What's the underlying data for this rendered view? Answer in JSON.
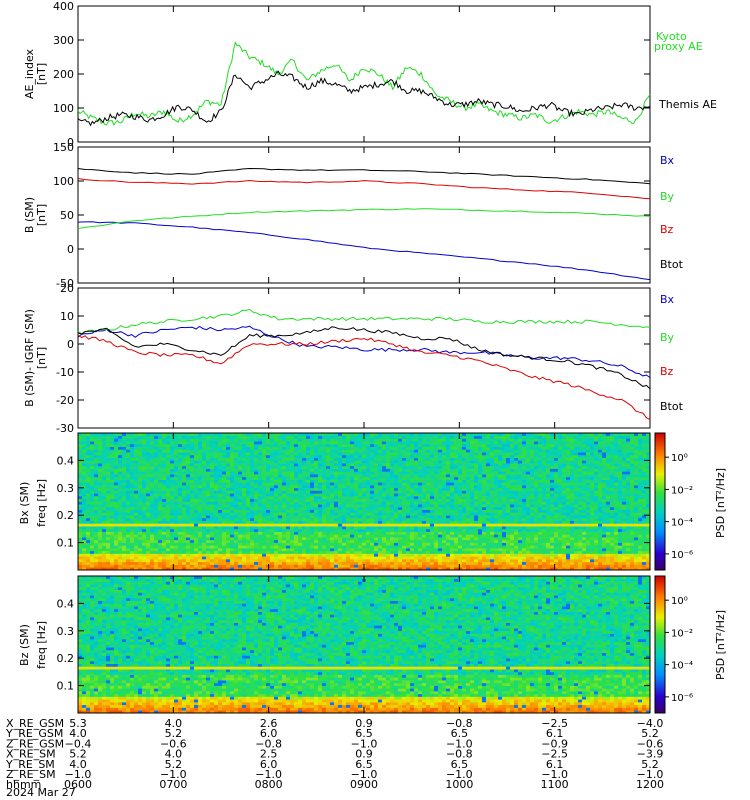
{
  "chart_data": [
    {
      "type": "line",
      "ylabel": "AE_index",
      "yunit": "[nT]",
      "ylim": [
        0,
        400
      ],
      "yticks": [
        0,
        100,
        200,
        300,
        400
      ],
      "series": [
        {
          "name": "Kyoto proxy AE",
          "color": "#22dd22",
          "x": [
            600,
            615,
            630,
            645,
            660,
            675,
            690,
            705,
            720,
            735,
            750,
            765,
            780,
            795,
            810,
            825,
            840,
            855,
            870,
            885,
            900,
            915,
            930,
            945,
            960,
            975,
            990,
            1005,
            1020,
            1035,
            1050,
            1065,
            1080,
            1095,
            1110,
            1125,
            1140,
            1155,
            1170,
            1185,
            1200
          ],
          "values": [
            90,
            70,
            55,
            60,
            85,
            75,
            90,
            60,
            80,
            120,
            110,
            290,
            250,
            230,
            200,
            240,
            180,
            210,
            230,
            180,
            220,
            200,
            160,
            220,
            200,
            140,
            120,
            100,
            110,
            90,
            80,
            70,
            80,
            60,
            75,
            90,
            80,
            90,
            70,
            60,
            140
          ]
        },
        {
          "name": "Themis AE",
          "color": "#000000",
          "x": [
            600,
            615,
            630,
            645,
            660,
            675,
            690,
            705,
            720,
            735,
            750,
            765,
            780,
            795,
            810,
            825,
            840,
            855,
            870,
            885,
            900,
            915,
            930,
            945,
            960,
            975,
            990,
            1005,
            1020,
            1035,
            1050,
            1065,
            1080,
            1095,
            1110,
            1125,
            1140,
            1155,
            1170,
            1185,
            1200
          ],
          "values": [
            60,
            55,
            70,
            80,
            75,
            65,
            80,
            105,
            95,
            60,
            90,
            200,
            160,
            180,
            200,
            190,
            160,
            180,
            170,
            150,
            160,
            170,
            180,
            150,
            150,
            130,
            110,
            110,
            120,
            110,
            105,
            90,
            100,
            110,
            90,
            80,
            95,
            100,
            110,
            100,
            105
          ]
        }
      ]
    },
    {
      "type": "line",
      "ylabel": "B (SM)",
      "yunit": "[nT]",
      "ylim": [
        -50,
        150
      ],
      "yticks": [
        -50,
        0,
        50,
        100,
        150
      ],
      "series": [
        {
          "name": "Bx",
          "color": "#0000cc",
          "x": [
            600,
            660,
            720,
            780,
            840,
            900,
            960,
            1020,
            1080,
            1140,
            1200
          ],
          "values": [
            40,
            38,
            32,
            24,
            14,
            2,
            -6,
            -14,
            -22,
            -32,
            -45
          ]
        },
        {
          "name": "By",
          "color": "#22dd22",
          "x": [
            600,
            660,
            720,
            780,
            840,
            900,
            960,
            1020,
            1080,
            1140,
            1200
          ],
          "values": [
            30,
            42,
            48,
            54,
            56,
            58,
            59,
            57,
            55,
            52,
            48
          ]
        },
        {
          "name": "Bz",
          "color": "#dd0000",
          "x": [
            600,
            660,
            720,
            780,
            840,
            900,
            960,
            1020,
            1080,
            1140,
            1200
          ],
          "values": [
            103,
            98,
            96,
            100,
            98,
            100,
            96,
            90,
            86,
            82,
            74
          ]
        },
        {
          "name": "Btot",
          "color": "#000000",
          "x": [
            600,
            660,
            720,
            780,
            840,
            900,
            960,
            1020,
            1080,
            1140,
            1200
          ],
          "values": [
            118,
            112,
            110,
            118,
            116,
            116,
            114,
            110,
            106,
            102,
            96
          ]
        }
      ]
    },
    {
      "type": "line",
      "ylabel": "B (SM)- IGRF (SM)",
      "yunit": "[nT]",
      "ylim": [
        -30,
        20
      ],
      "yticks": [
        -30,
        -20,
        -10,
        0,
        10,
        20
      ],
      "series": [
        {
          "name": "Bx",
          "color": "#0000cc",
          "x": [
            600,
            630,
            660,
            690,
            720,
            750,
            780,
            810,
            840,
            870,
            900,
            930,
            960,
            990,
            1020,
            1050,
            1080,
            1110,
            1140,
            1170,
            1200
          ],
          "values": [
            3,
            5,
            3,
            5,
            6,
            5,
            6,
            2,
            -1,
            -1,
            -2,
            -2,
            -2,
            -3,
            -3,
            -4,
            -5,
            -5,
            -6,
            -8,
            -12
          ]
        },
        {
          "name": "By",
          "color": "#22dd22",
          "x": [
            600,
            630,
            660,
            690,
            720,
            750,
            780,
            810,
            840,
            870,
            900,
            930,
            960,
            990,
            1020,
            1050,
            1080,
            1110,
            1140,
            1170,
            1200
          ],
          "values": [
            4,
            5,
            7,
            8,
            9,
            10,
            12,
            9,
            9,
            9,
            9,
            9,
            9,
            9,
            8,
            8,
            8,
            8,
            8,
            7,
            6
          ]
        },
        {
          "name": "Bz",
          "color": "#dd0000",
          "x": [
            600,
            630,
            660,
            690,
            720,
            750,
            780,
            810,
            840,
            870,
            900,
            930,
            960,
            990,
            1020,
            1050,
            1080,
            1110,
            1140,
            1170,
            1200
          ],
          "values": [
            3,
            1,
            -3,
            -4,
            -4,
            -7,
            0,
            0,
            0,
            1,
            2,
            0,
            -3,
            -4,
            -6,
            -9,
            -12,
            -14,
            -17,
            -20,
            -27
          ]
        },
        {
          "name": "Btot",
          "color": "#000000",
          "x": [
            600,
            630,
            660,
            690,
            720,
            750,
            780,
            810,
            840,
            870,
            900,
            930,
            960,
            990,
            1020,
            1050,
            1080,
            1110,
            1140,
            1170,
            1200
          ],
          "values": [
            4,
            5,
            -1,
            0,
            -2,
            -4,
            3,
            3,
            4,
            6,
            5,
            4,
            2,
            2,
            -2,
            -4,
            -5,
            -6,
            -8,
            -11,
            -16
          ]
        }
      ]
    },
    {
      "type": "heatmap",
      "ylabel": "Bx (SM)",
      "ylabel2": "freq",
      "yunit": "[Hz]",
      "ylim": [
        0,
        0.5
      ],
      "yticks": [
        0.1,
        0.2,
        0.3,
        0.4
      ],
      "colorbar": {
        "label": "PSD",
        "unit": "[nT²/Hz]",
        "ticks": [
          "10⁰",
          "10⁻²",
          "10⁻⁴",
          "10⁻⁶"
        ],
        "exponents": [
          0,
          -2,
          -4,
          -6
        ]
      }
    },
    {
      "type": "heatmap",
      "ylabel": "Bz (SM)",
      "ylabel2": "freq",
      "yunit": "[Hz]",
      "ylim": [
        0,
        0.5
      ],
      "yticks": [
        0.1,
        0.2,
        0.3,
        0.4
      ],
      "colorbar": {
        "label": "PSD",
        "unit": "[nT²/Hz]",
        "ticks": [
          "10⁰",
          "10⁻²",
          "10⁻⁴",
          "10⁻⁶"
        ],
        "exponents": [
          0,
          -2,
          -4,
          -6
        ]
      }
    }
  ],
  "time_axis": {
    "xlim": [
      600,
      1200
    ],
    "ticks": [
      600,
      700,
      800,
      900,
      1000,
      1100,
      1200
    ],
    "rows": [
      {
        "label": "X_RE_GSM",
        "values": [
          "5.3",
          "4.0",
          "2.6",
          "0.9",
          "−0.8",
          "−2.5",
          "−4.0"
        ]
      },
      {
        "label": "Y_RE_GSM",
        "values": [
          "4.0",
          "5.2",
          "6.0",
          "6.5",
          "6.5",
          "6.1",
          "5.2"
        ]
      },
      {
        "label": "Z_RE_GSM",
        "values": [
          "−0.4",
          "−0.6",
          "−0.8",
          "−1.0",
          "−1.0",
          "−0.9",
          "−0.6"
        ]
      },
      {
        "label": "X_RE_SM",
        "values": [
          "5.2",
          "4.0",
          "2.5",
          "0.9",
          "−0.8",
          "−2.5",
          "−3.9"
        ]
      },
      {
        "label": "Y_RE_SM",
        "values": [
          "4.0",
          "5.2",
          "6.0",
          "6.5",
          "6.5",
          "6.1",
          "5.2"
        ]
      },
      {
        "label": "Z_RE_SM",
        "values": [
          "−1.0",
          "−1.0",
          "−1.0",
          "−1.0",
          "−1.0",
          "−1.0",
          "−1.0"
        ]
      },
      {
        "label": "hhmm",
        "values": [
          "0600",
          "0700",
          "0800",
          "0900",
          "1000",
          "1100",
          "1200"
        ]
      }
    ],
    "date": "2024 Mar 27"
  }
}
